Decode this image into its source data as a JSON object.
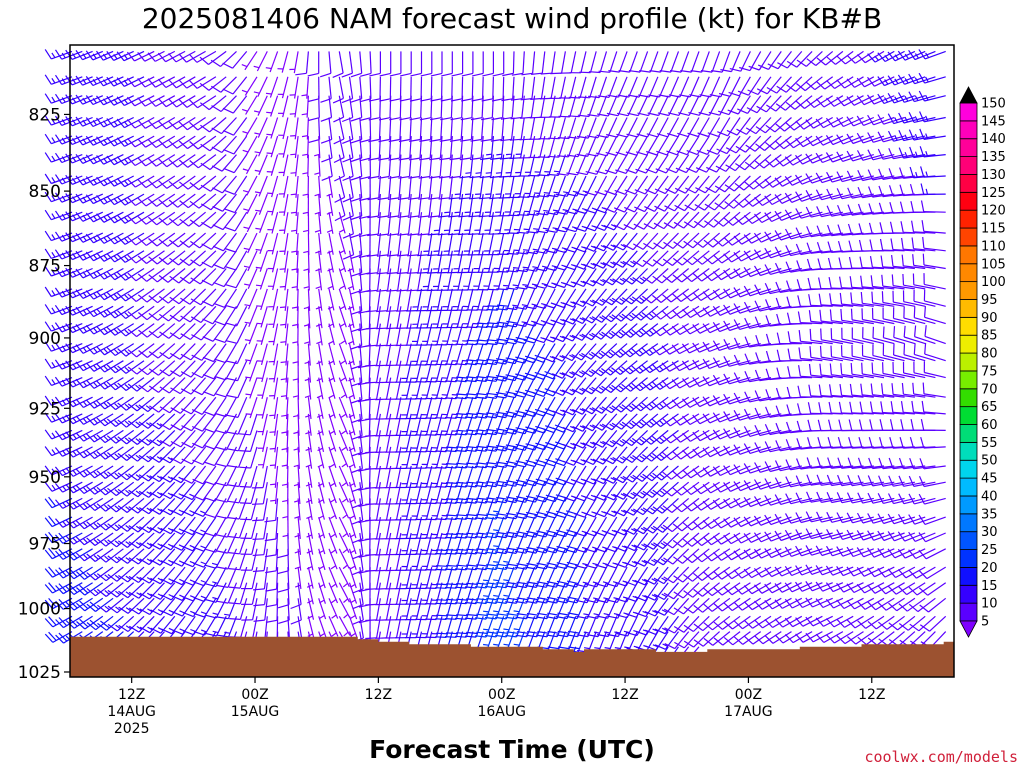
{
  "chart_data": {
    "type": "wind-barb-time-height",
    "title": "2025081406 NAM forecast wind profile (kt) for KB#B",
    "xlabel": "Forecast Time (UTC)",
    "ylabel": "",
    "units": "kt",
    "y_axis": {
      "quantity": "pressure (hPa)",
      "range": [
        1027,
        803
      ],
      "ticks": [
        825,
        850,
        875,
        900,
        925,
        950,
        975,
        1000,
        1025
      ]
    },
    "x_axis": {
      "start": "2025-08-14 06Z",
      "end": "2025-08-17 19Z",
      "step_hours": 1,
      "ticks": [
        {
          "time": "2025-08-14 12Z",
          "lines": [
            "12Z",
            "14AUG",
            "2025"
          ]
        },
        {
          "time": "2025-08-15 00Z",
          "lines": [
            "00Z",
            "15AUG"
          ]
        },
        {
          "time": "2025-08-15 12Z",
          "lines": [
            "12Z"
          ]
        },
        {
          "time": "2025-08-16 00Z",
          "lines": [
            "00Z",
            "16AUG"
          ]
        },
        {
          "time": "2025-08-16 12Z",
          "lines": [
            "12Z"
          ]
        },
        {
          "time": "2025-08-17 00Z",
          "lines": [
            "00Z",
            "17AUG"
          ]
        },
        {
          "time": "2025-08-17 12Z",
          "lines": [
            "12Z"
          ]
        }
      ]
    },
    "pressure_levels": [
      805,
      813,
      819,
      826,
      832,
      838,
      845,
      851,
      857,
      864,
      870,
      876,
      883,
      889,
      895,
      902,
      908,
      914,
      921,
      927,
      933,
      939,
      946,
      952,
      958,
      965,
      971,
      977,
      984,
      990,
      996,
      1003,
      1009,
      1015,
      1021
    ],
    "surface_pressure": [
      {
        "time": "2025-08-14 06Z",
        "p": 1011
      },
      {
        "time": "2025-08-15 10Z",
        "p": 1012
      },
      {
        "time": "2025-08-15 12Z",
        "p": 1013
      },
      {
        "time": "2025-08-15 15Z",
        "p": 1014
      },
      {
        "time": "2025-08-15 21Z",
        "p": 1015
      },
      {
        "time": "2025-08-16 04Z",
        "p": 1016
      },
      {
        "time": "2025-08-16 07Z",
        "p": 1017
      },
      {
        "time": "2025-08-16 08Z",
        "p": 1016
      },
      {
        "time": "2025-08-16 15Z",
        "p": 1017
      },
      {
        "time": "2025-08-16 20Z",
        "p": 1016
      },
      {
        "time": "2025-08-17 05Z",
        "p": 1015
      },
      {
        "time": "2025-08-17 11Z",
        "p": 1014
      },
      {
        "time": "2025-08-17 19Z",
        "p": 1013
      }
    ],
    "wind_keyframes": [
      {
        "time": "2025-08-14 06Z",
        "low": {
          "dir": 240,
          "spd": 20
        },
        "mid": {
          "dir": 250,
          "spd": 15
        },
        "high": {
          "dir": 250,
          "spd": 15
        }
      },
      {
        "time": "2025-08-14 20Z",
        "low": {
          "dir": 210,
          "spd": 15
        },
        "mid": {
          "dir": 220,
          "spd": 10
        },
        "high": {
          "dir": 240,
          "spd": 10
        }
      },
      {
        "time": "2025-08-15 02Z",
        "low": {
          "dir": 180,
          "spd": 10
        },
        "mid": {
          "dir": 190,
          "spd": 5
        },
        "high": {
          "dir": 200,
          "spd": 5
        }
      },
      {
        "time": "2025-08-15 08Z",
        "low": {
          "dir": 150,
          "spd": 5
        },
        "mid": {
          "dir": 160,
          "spd": 5
        },
        "high": {
          "dir": 170,
          "spd": 10
        }
      },
      {
        "time": "2025-08-15 12Z",
        "low": {
          "dir": 190,
          "spd": 10
        },
        "mid": {
          "dir": 190,
          "spd": 10
        },
        "high": {
          "dir": 180,
          "spd": 10
        }
      },
      {
        "time": "2025-08-16 00Z",
        "low": {
          "dir": 200,
          "spd": 25
        },
        "mid": {
          "dir": 200,
          "spd": 20
        },
        "high": {
          "dir": 180,
          "spd": 10
        }
      },
      {
        "time": "2025-08-16 12Z",
        "low": {
          "dir": 200,
          "spd": 15
        },
        "mid": {
          "dir": 230,
          "spd": 15
        },
        "high": {
          "dir": 200,
          "spd": 10
        }
      },
      {
        "time": "2025-08-16 22Z",
        "low": {
          "dir": 230,
          "spd": 10
        },
        "mid": {
          "dir": 250,
          "spd": 10
        },
        "high": {
          "dir": 200,
          "spd": 10
        }
      },
      {
        "time": "2025-08-17 08Z",
        "low": {
          "dir": 240,
          "spd": 10
        },
        "mid": {
          "dir": 280,
          "spd": 10
        },
        "high": {
          "dir": 230,
          "spd": 10
        }
      },
      {
        "time": "2025-08-17 19Z",
        "low": {
          "dir": 220,
          "spd": 10
        },
        "mid": {
          "dir": 290,
          "spd": 10
        },
        "high": {
          "dir": 250,
          "spd": 15
        }
      }
    ],
    "colorbar": {
      "levels": [
        5,
        10,
        15,
        20,
        25,
        30,
        35,
        40,
        45,
        50,
        55,
        60,
        65,
        70,
        75,
        80,
        85,
        90,
        95,
        100,
        105,
        110,
        115,
        120,
        125,
        130,
        135,
        140,
        145,
        150
      ],
      "colors": [
        "#7f00ff",
        "#5a00ff",
        "#3500ff",
        "#1010ff",
        "#0033ff",
        "#0055ff",
        "#0078ff",
        "#009aff",
        "#00bbff",
        "#00d5ee",
        "#00ddbb",
        "#00dd77",
        "#00dd33",
        "#33dd00",
        "#77ee00",
        "#bbf000",
        "#eeee00",
        "#ffdd00",
        "#ffbb00",
        "#ff9900",
        "#ff8800",
        "#ff7700",
        "#ff4400",
        "#ff2200",
        "#ff0011",
        "#ff0044",
        "#ff0077",
        "#ff0099",
        "#ff00bb",
        "#ff00dd",
        "#000000"
      ]
    },
    "surface_color": "#9c5230",
    "credit": "coolwx.com/models"
  }
}
